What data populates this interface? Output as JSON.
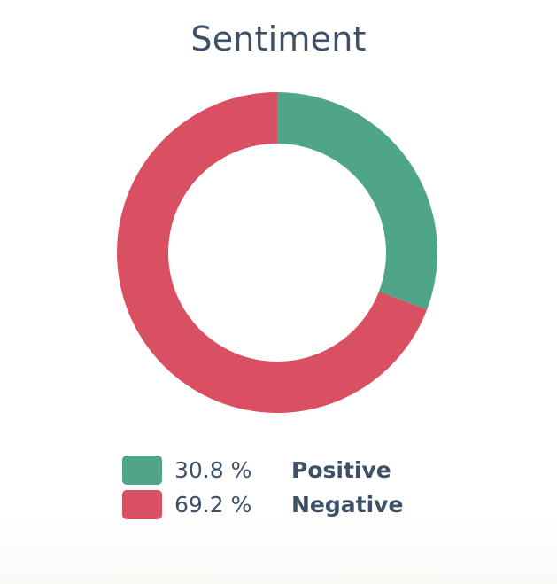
{
  "chart_data": {
    "type": "pie",
    "variant": "donut",
    "title": "Sentiment",
    "categories": [
      "Positive",
      "Negative"
    ],
    "values": [
      30.8,
      69.2
    ],
    "value_labels": [
      "30.8 %",
      "69.2 %"
    ],
    "colors": [
      "#4fa589",
      "#d85062"
    ],
    "legend_position": "bottom",
    "start_angle": "12 o'clock",
    "direction": "clockwise"
  }
}
